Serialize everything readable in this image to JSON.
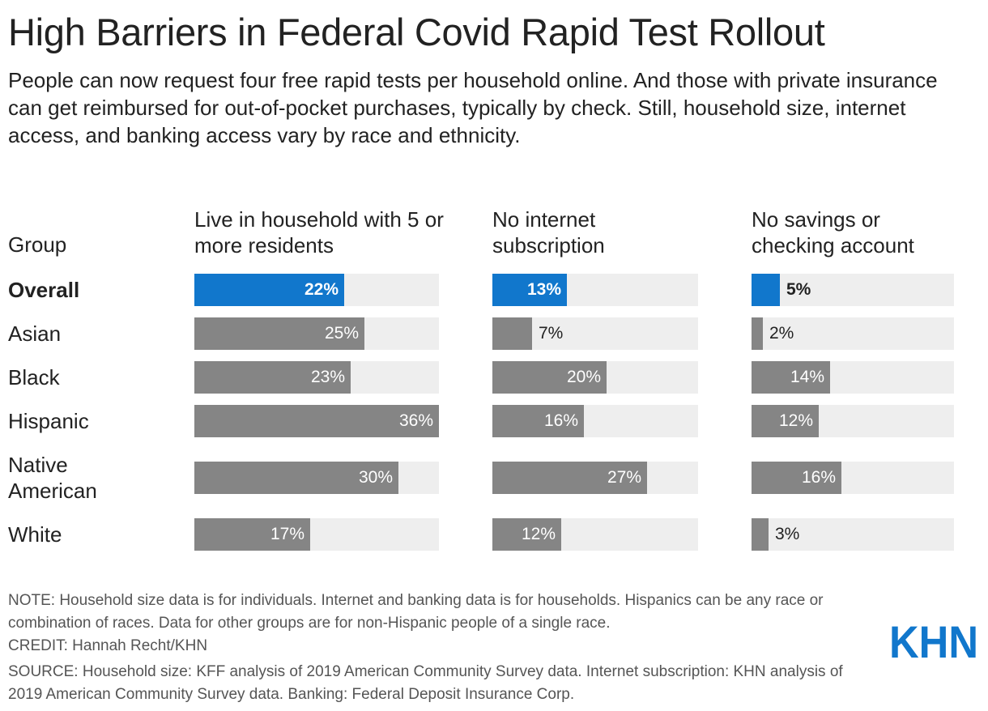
{
  "title": "High Barriers in Federal Covid Rapid Test Rollout",
  "subtitle": "People can now request four free rapid tests per household online. And those with private insurance can get reimbursed for out-of-pocket purchases, typically by check. Still, household size, internet access, and banking access vary by race and ethnicity.",
  "group_header": "Group",
  "colors": {
    "highlight": "#1177cc",
    "bar": "#858585",
    "track": "#eeeeee"
  },
  "chart_data": {
    "type": "bar",
    "orientation": "horizontal",
    "title": "High Barriers in Federal Covid Rapid Test Rollout",
    "categories": [
      "Overall",
      "Asian",
      "Black",
      "Hispanic",
      "Native American",
      "White"
    ],
    "value_suffix": "%",
    "highlight_category": "Overall",
    "series": [
      {
        "name": "Live in household with 5 or more residents",
        "values": [
          22,
          25,
          23,
          36,
          30,
          17
        ],
        "xlim": [
          0,
          36
        ]
      },
      {
        "name": "No internet subscription",
        "values": [
          13,
          7,
          20,
          16,
          27,
          12
        ],
        "xlim": [
          0,
          36
        ]
      },
      {
        "name": "No savings or checking account",
        "values": [
          5,
          2,
          14,
          12,
          16,
          3
        ],
        "xlim": [
          0,
          36
        ]
      }
    ]
  },
  "footer": {
    "note": "NOTE: Household size data is for individuals. Internet and banking data is for households. Hispanics can be any race or combination of races. Data for other groups are for non-Hispanic people of a single race.",
    "credit": "CREDIT: Hannah Recht/KHN",
    "source": "SOURCE: Household size: KFF analysis of 2019 American Community Survey data. Internet subscription: KHN analysis of 2019 American Community Survey data. Banking: Federal Deposit Insurance Corp."
  },
  "logo": {
    "text": "KHN",
    "icon": "khn-logo-icon"
  }
}
